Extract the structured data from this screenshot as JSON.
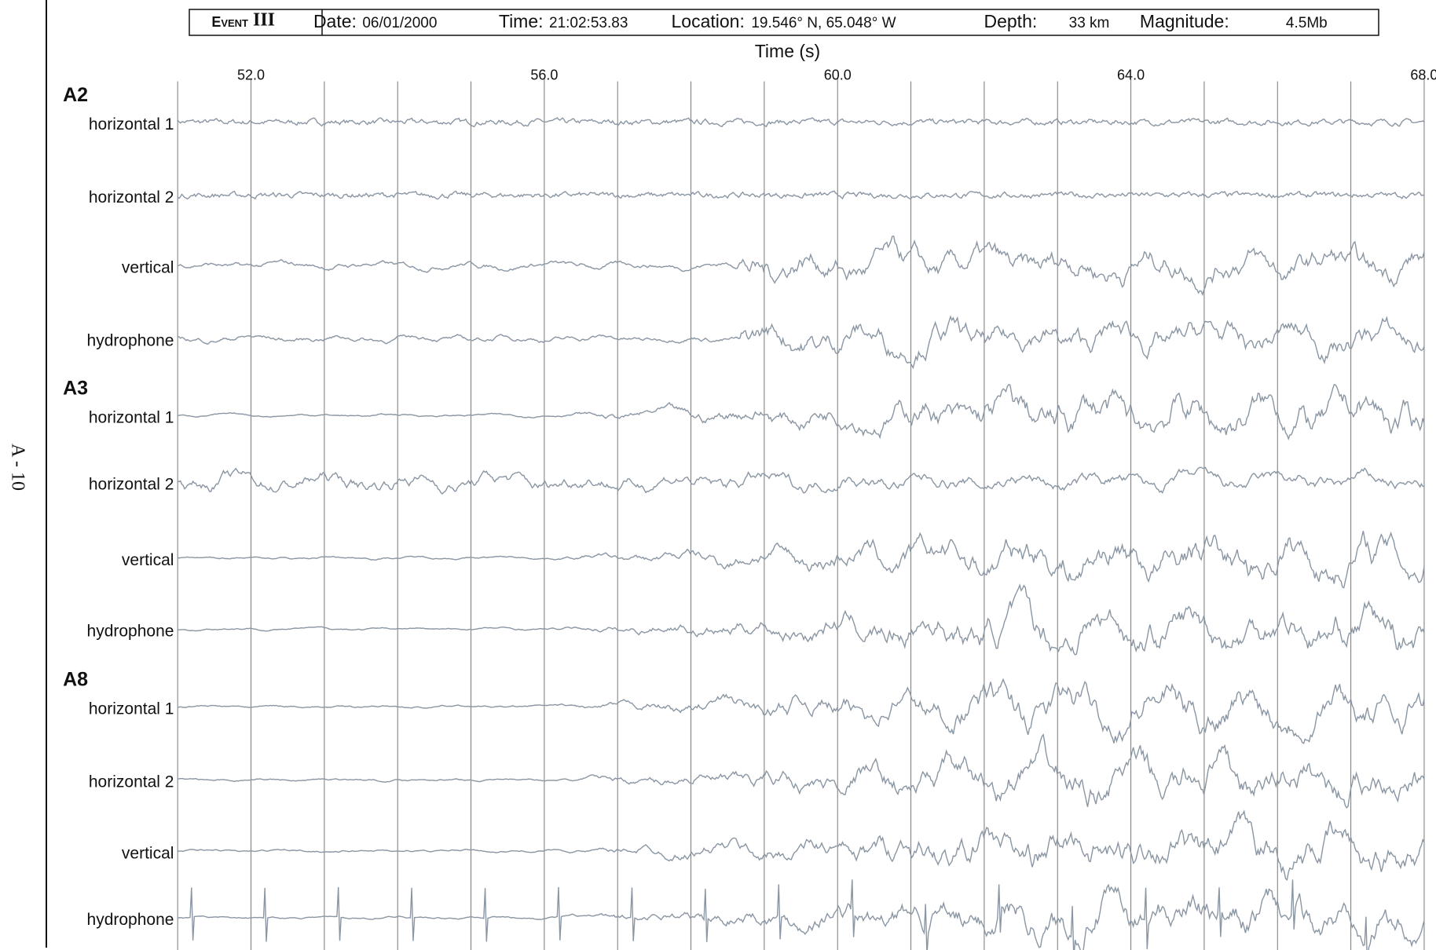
{
  "page_label": "A - 10",
  "chart_data": {
    "type": "seismogram",
    "header": {
      "event_word": "Event",
      "event_number": "III",
      "fields": [
        {
          "label": "Date:",
          "value": "06/01/2000"
        },
        {
          "label": "Time:",
          "value": "21:02:53.83"
        },
        {
          "label": "Location:",
          "value": "19.546° N, 65.048° W"
        },
        {
          "label": "Depth:",
          "value": "33 km"
        },
        {
          "label": "Magnitude:",
          "value": "4.5Mb"
        }
      ]
    },
    "xlabel": "Time (s)",
    "xlim": [
      51,
      68
    ],
    "xticks": [
      {
        "value": 52,
        "label": "52.0"
      },
      {
        "value": 56,
        "label": "56.0"
      },
      {
        "value": 60,
        "label": "60.0"
      },
      {
        "value": 64,
        "label": "64.0"
      },
      {
        "value": 68,
        "label": "68.0"
      }
    ],
    "gridlines": [
      51,
      52,
      53,
      54,
      55,
      56,
      57,
      58,
      59,
      60,
      61,
      62,
      63,
      64,
      65,
      66,
      67,
      68
    ],
    "color": "#8a96a3",
    "panels": [
      {
        "name": "A2",
        "channels": [
          "horizontal 1",
          "horizontal 2",
          "vertical",
          "hydrophone"
        ]
      },
      {
        "name": "A3",
        "channels": [
          "horizontal 1",
          "horizontal 2",
          "vertical",
          "hydrophone"
        ]
      },
      {
        "name": "A8",
        "channels": [
          "horizontal 1",
          "horizontal 2",
          "vertical",
          "hydrophone"
        ]
      }
    ]
  }
}
